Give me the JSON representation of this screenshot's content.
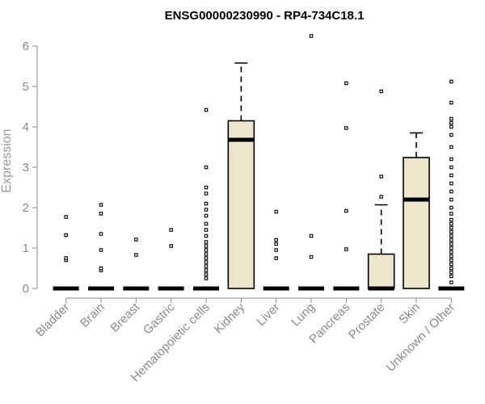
{
  "chart_data": {
    "type": "boxplot",
    "title": "ENSG00000230990 - RP4-734C18.1",
    "xlabel": "",
    "ylabel": "Expression",
    "ylim": [
      0,
      6.3
    ],
    "yticks": [
      0,
      1,
      2,
      3,
      4,
      5,
      6
    ],
    "grid": false,
    "colors": {
      "box_fill": "#ede5cc",
      "stroke": "#000000",
      "axis_text": "#8a8a8a"
    },
    "categories": [
      "Bladder",
      "Brain",
      "Breast",
      "Gastric",
      "Hematopoietic cells",
      "Kidney",
      "Liver",
      "Lung",
      "Pancreas",
      "Prostate",
      "Skin",
      "Unknown / Other"
    ],
    "boxes": [
      {
        "q1": 0,
        "median": 0,
        "q3": 0,
        "whisker_low": 0,
        "whisker_high": 0,
        "outliers": [
          0.7,
          0.75,
          1.32,
          1.77
        ]
      },
      {
        "q1": 0,
        "median": 0,
        "q3": 0,
        "whisker_low": 0,
        "whisker_high": 0,
        "outliers": [
          0.45,
          0.5,
          0.95,
          1.35,
          1.85,
          2.07
        ]
      },
      {
        "q1": 0,
        "median": 0,
        "q3": 0,
        "whisker_low": 0,
        "whisker_high": 0,
        "outliers": [
          0.83,
          1.21
        ]
      },
      {
        "q1": 0,
        "median": 0,
        "q3": 0,
        "whisker_low": 0,
        "whisker_high": 0,
        "outliers": [
          1.05,
          1.45
        ]
      },
      {
        "q1": 0,
        "median": 0,
        "q3": 0,
        "whisker_low": 0,
        "whisker_high": 0,
        "outliers": [
          0.25,
          0.35,
          0.45,
          0.55,
          0.65,
          0.75,
          0.85,
          0.95,
          1.05,
          1.15,
          1.3,
          1.45,
          1.6,
          1.8,
          1.95,
          2.1,
          2.35,
          2.5,
          3.0,
          4.42
        ]
      },
      {
        "q1": 0,
        "median": 3.68,
        "q3": 4.15,
        "whisker_low": 0,
        "whisker_high": 5.58,
        "outliers": []
      },
      {
        "q1": 0,
        "median": 0,
        "q3": 0,
        "whisker_low": 0,
        "whisker_high": 0,
        "outliers": [
          0.75,
          0.95,
          1.1,
          1.2,
          1.9
        ]
      },
      {
        "q1": 0,
        "median": 0,
        "q3": 0,
        "whisker_low": 0,
        "whisker_high": 0,
        "outliers": [
          0.78,
          1.3,
          6.25
        ]
      },
      {
        "q1": 0,
        "median": 0,
        "q3": 0,
        "whisker_low": 0,
        "whisker_high": 0,
        "outliers": [
          0.97,
          1.92,
          3.97,
          5.08
        ]
      },
      {
        "q1": 0,
        "median": 0,
        "q3": 0.85,
        "whisker_low": 0,
        "whisker_high": 2.07,
        "outliers": [
          2.27,
          2.77,
          4.88
        ]
      },
      {
        "q1": 0,
        "median": 2.2,
        "q3": 3.24,
        "whisker_low": 0,
        "whisker_high": 3.85,
        "outliers": []
      },
      {
        "q1": 0,
        "median": 0,
        "q3": 0,
        "whisker_low": 0,
        "whisker_high": 0,
        "outliers": [
          0.15,
          0.3,
          0.4,
          0.5,
          0.6,
          0.7,
          0.8,
          0.9,
          1.0,
          1.1,
          1.2,
          1.3,
          1.4,
          1.5,
          1.6,
          1.7,
          1.85,
          2.0,
          2.2,
          2.4,
          2.6,
          2.8,
          3.0,
          3.2,
          3.5,
          3.8,
          4.0,
          4.1,
          4.2,
          4.6,
          5.12
        ]
      }
    ]
  }
}
